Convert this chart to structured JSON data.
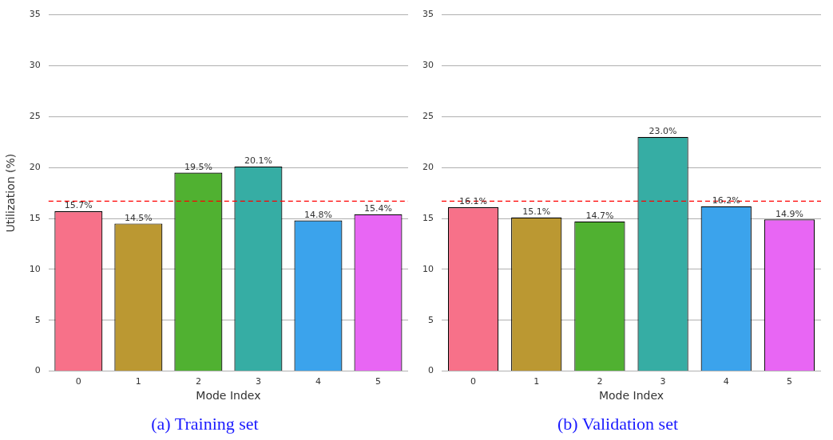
{
  "chart_data": [
    {
      "type": "bar",
      "title": "(a) Training set",
      "xlabel": "Mode Index",
      "ylabel": "Utilization (%)",
      "categories": [
        "0",
        "1",
        "2",
        "3",
        "4",
        "5"
      ],
      "values": [
        15.7,
        14.5,
        19.5,
        20.1,
        14.8,
        15.4
      ],
      "value_labels": [
        "15.7%",
        "14.5%",
        "19.5%",
        "20.1%",
        "14.8%",
        "15.4%"
      ],
      "colors": [
        "#f77189",
        "#bb9832",
        "#50b131",
        "#36ada4",
        "#3ba3ec",
        "#e866f4"
      ],
      "ylim": [
        0,
        35
      ],
      "yticks": [
        0,
        5,
        10,
        15,
        20,
        25,
        30,
        35
      ],
      "grid": "y",
      "legend": false,
      "ref_lines": [
        {
          "axis": "y",
          "value": 16.7,
          "color": "#ff0000",
          "line_style": "dashed"
        }
      ]
    },
    {
      "type": "bar",
      "title": "(b) Validation set",
      "xlabel": "Mode Index",
      "categories": [
        "0",
        "1",
        "2",
        "3",
        "4",
        "5"
      ],
      "values": [
        16.1,
        15.1,
        14.7,
        23.0,
        16.2,
        14.9
      ],
      "value_labels": [
        "16.1%",
        "15.1%",
        "14.7%",
        "23.0%",
        "16.2%",
        "14.9%"
      ],
      "colors": [
        "#f77189",
        "#bb9832",
        "#50b131",
        "#36ada4",
        "#3ba3ec",
        "#e866f4"
      ],
      "ylim": [
        0,
        35
      ],
      "yticks": [
        0,
        5,
        10,
        15,
        20,
        25,
        30,
        35
      ],
      "grid": "y",
      "legend": false,
      "ref_lines": [
        {
          "axis": "y",
          "value": 16.7,
          "color": "#ff0000",
          "line_style": "dashed"
        }
      ]
    }
  ]
}
